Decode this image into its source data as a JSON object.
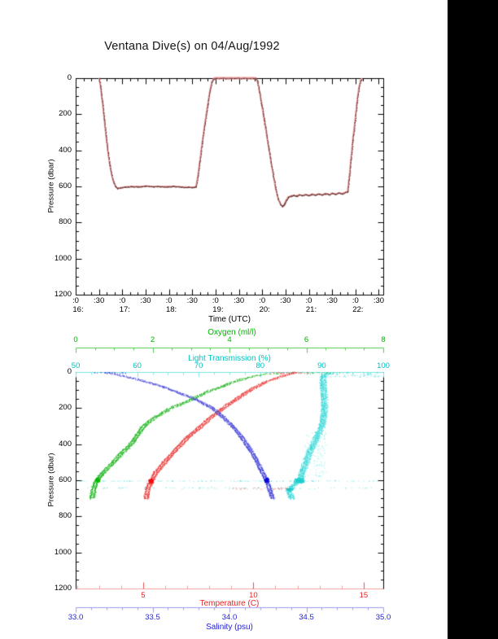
{
  "title": "Ventana Dive(s) on 04/Aug/1992",
  "colors": {
    "background": "#ffffff",
    "right_band": "#000000",
    "axis": "#000000",
    "dive_line": "#f2a6a6",
    "dive_dots": "#5e2a2a",
    "oxygen": "#12b212",
    "light_transmission": "#2fd6d6",
    "temperature": "#ea3030",
    "salinity": "#3c3cd6"
  },
  "chart_data": [
    {
      "id": "dive-depth-timeseries",
      "type": "line",
      "xlabel": "Time (UTC)",
      "ylabel": "Pressure (dbar)",
      "ylim": [
        1200,
        0
      ],
      "xlim_hours": [
        16.0,
        22.6
      ],
      "grid": false,
      "y_ticks": [
        0,
        200,
        400,
        600,
        800,
        1000,
        1200
      ],
      "x_ticks": [
        {
          "h": 16.0,
          "m": ":0",
          "hr": "16:"
        },
        {
          "h": 16.5,
          "m": ":30"
        },
        {
          "h": 17.0,
          "m": ":0",
          "hr": "17:"
        },
        {
          "h": 17.5,
          "m": ":30"
        },
        {
          "h": 18.0,
          "m": ":0",
          "hr": "18:"
        },
        {
          "h": 18.5,
          "m": ":30"
        },
        {
          "h": 19.0,
          "m": ":0",
          "hr": "19:"
        },
        {
          "h": 19.5,
          "m": ":30"
        },
        {
          "h": 20.0,
          "m": ":0",
          "hr": "20:"
        },
        {
          "h": 20.5,
          "m": ":30"
        },
        {
          "h": 21.0,
          "m": ":0",
          "hr": "21:"
        },
        {
          "h": 21.5,
          "m": ":30"
        },
        {
          "h": 22.0,
          "m": ":0",
          "hr": "22:"
        },
        {
          "h": 22.5,
          "m": ":30"
        }
      ],
      "series": [
        {
          "name": "dive pressure track",
          "line_color": "#f2a6a6",
          "dot_color": "#5e2a2a",
          "points_time_pressure": [
            [
              16.5,
              0
            ],
            [
              16.53,
              45
            ],
            [
              16.57,
              130
            ],
            [
              16.61,
              225
            ],
            [
              16.65,
              320
            ],
            [
              16.69,
              410
            ],
            [
              16.73,
              480
            ],
            [
              16.77,
              535
            ],
            [
              16.81,
              575
            ],
            [
              16.85,
              598
            ],
            [
              16.89,
              610
            ],
            [
              16.95,
              607
            ],
            [
              17.05,
              603
            ],
            [
              17.2,
              600
            ],
            [
              17.35,
              601
            ],
            [
              17.5,
              597
            ],
            [
              17.65,
              601
            ],
            [
              17.8,
              599
            ],
            [
              17.95,
              601
            ],
            [
              18.1,
              598
            ],
            [
              18.25,
              602
            ],
            [
              18.4,
              603
            ],
            [
              18.52,
              605
            ],
            [
              18.58,
              600
            ],
            [
              18.62,
              540
            ],
            [
              18.66,
              460
            ],
            [
              18.71,
              360
            ],
            [
              18.77,
              250
            ],
            [
              18.83,
              145
            ],
            [
              18.88,
              65
            ],
            [
              18.92,
              20
            ],
            [
              18.96,
              2
            ],
            [
              19.0,
              0
            ],
            [
              19.2,
              0
            ],
            [
              19.4,
              0
            ],
            [
              19.6,
              0
            ],
            [
              19.8,
              0
            ],
            [
              19.86,
              0
            ],
            [
              19.9,
              18
            ],
            [
              19.94,
              75
            ],
            [
              19.99,
              150
            ],
            [
              20.04,
              230
            ],
            [
              20.09,
              310
            ],
            [
              20.14,
              390
            ],
            [
              20.19,
              465
            ],
            [
              20.24,
              545
            ],
            [
              20.29,
              615
            ],
            [
              20.34,
              668
            ],
            [
              20.39,
              698
            ],
            [
              20.43,
              710
            ],
            [
              20.47,
              700
            ],
            [
              20.51,
              678
            ],
            [
              20.55,
              660
            ],
            [
              20.61,
              653
            ],
            [
              20.67,
              648
            ],
            [
              20.73,
              653
            ],
            [
              20.79,
              645
            ],
            [
              20.86,
              651
            ],
            [
              20.93,
              644
            ],
            [
              21.0,
              650
            ],
            [
              21.07,
              642
            ],
            [
              21.14,
              647
            ],
            [
              21.21,
              641
            ],
            [
              21.28,
              646
            ],
            [
              21.35,
              639
            ],
            [
              21.43,
              645
            ],
            [
              21.5,
              637
            ],
            [
              21.57,
              642
            ],
            [
              21.64,
              635
            ],
            [
              21.71,
              640
            ],
            [
              21.78,
              633
            ],
            [
              21.83,
              628
            ],
            [
              21.86,
              560
            ],
            [
              21.9,
              455
            ],
            [
              21.94,
              345
            ],
            [
              21.99,
              235
            ],
            [
              22.03,
              135
            ],
            [
              22.07,
              55
            ],
            [
              22.11,
              12
            ],
            [
              22.14,
              0
            ]
          ]
        }
      ]
    },
    {
      "id": "ctd-profiles",
      "type": "scatter",
      "ylabel": "Pressure (dbar)",
      "ylim": [
        1200,
        0
      ],
      "grid": false,
      "y_ticks": [
        0,
        200,
        400,
        600,
        800,
        1000,
        1200
      ],
      "series": [
        {
          "name": "Oxygen",
          "axis_label": "Oxygen (ml/l)",
          "axis_position": "floating-top",
          "color": "#12b212",
          "blob_color": "#0ab80a",
          "range": [
            0,
            8
          ],
          "ticks": [
            0,
            2,
            4,
            6,
            8
          ],
          "tick_labels": [
            "0",
            "2",
            "4",
            "6",
            "8"
          ],
          "minor_step": 0.5,
          "profile_pressure_value": [
            [
              0,
              5.9
            ],
            [
              5,
              5.3
            ],
            [
              12,
              4.85
            ],
            [
              25,
              4.55
            ],
            [
              40,
              4.3
            ],
            [
              60,
              4.0
            ],
            [
              80,
              3.8
            ],
            [
              100,
              3.5
            ],
            [
              130,
              3.2
            ],
            [
              160,
              2.9
            ],
            [
              200,
              2.45
            ],
            [
              250,
              2.05
            ],
            [
              300,
              1.75
            ],
            [
              350,
              1.6
            ],
            [
              400,
              1.42
            ],
            [
              450,
              1.18
            ],
            [
              500,
              0.97
            ],
            [
              550,
              0.73
            ],
            [
              590,
              0.58
            ],
            [
              620,
              0.5
            ],
            [
              660,
              0.45
            ],
            [
              700,
              0.42
            ]
          ]
        },
        {
          "name": "Light Transmission",
          "axis_label": "Light Transmission (%)",
          "axis_position": "top-edge",
          "color": "#2fd6d6",
          "blob_color": "#1fd0d0",
          "range": [
            50,
            100
          ],
          "ticks": [
            50,
            60,
            70,
            80,
            90,
            100
          ],
          "tick_labels": [
            "50",
            "60",
            "70",
            "80",
            "90",
            "100"
          ],
          "minor_step": 2.5,
          "profile_pressure_value": [
            [
              0,
              93
            ],
            [
              5,
              91.2
            ],
            [
              15,
              90.4
            ],
            [
              30,
              90.2
            ],
            [
              60,
              90.2
            ],
            [
              100,
              90.3
            ],
            [
              150,
              90.4
            ],
            [
              200,
              90.4
            ],
            [
              250,
              90.3
            ],
            [
              300,
              90.0
            ],
            [
              350,
              89.3
            ],
            [
              400,
              88.6
            ],
            [
              450,
              87.9
            ],
            [
              500,
              87.4
            ],
            [
              550,
              86.8
            ],
            [
              590,
              86.6
            ],
            [
              615,
              85.8
            ],
            [
              640,
              84.8
            ],
            [
              665,
              84.6
            ],
            [
              700,
              85.2
            ]
          ]
        },
        {
          "name": "Temperature",
          "axis_label": "Temperature (C)",
          "axis_position": "bottom-edge",
          "color": "#ea3030",
          "blob_color": "#f01212",
          "range": [
            1.94,
            15.89
          ],
          "ticks": [
            5,
            10,
            15
          ],
          "tick_labels": [
            "5",
            "10",
            "15"
          ],
          "minor_step": 1,
          "profile_pressure_value": [
            [
              0,
              11.9
            ],
            [
              10,
              11.6
            ],
            [
              25,
              11.2
            ],
            [
              50,
              10.6
            ],
            [
              75,
              10.2
            ],
            [
              100,
              9.8
            ],
            [
              150,
              9.2
            ],
            [
              200,
              8.6
            ],
            [
              250,
              8.05
            ],
            [
              300,
              7.6
            ],
            [
              350,
              7.1
            ],
            [
              400,
              6.7
            ],
            [
              450,
              6.3
            ],
            [
              500,
              5.95
            ],
            [
              550,
              5.6
            ],
            [
              600,
              5.35
            ],
            [
              650,
              5.2
            ],
            [
              700,
              5.12
            ]
          ]
        },
        {
          "name": "Salinity",
          "axis_label": "Salinity (psu)",
          "axis_position": "floating-bottom",
          "color": "#3c3cd6",
          "blob_color": "#0d0dd8",
          "range": [
            33.0,
            35.0
          ],
          "ticks": [
            33.0,
            33.5,
            34.0,
            34.5,
            35.0
          ],
          "tick_labels": [
            "33.0",
            "33.5",
            "34.0",
            "34.5",
            "35.0"
          ],
          "minor_step": 0.1,
          "profile_pressure_value": [
            [
              0,
              33.2
            ],
            [
              10,
              33.26
            ],
            [
              25,
              33.33
            ],
            [
              50,
              33.45
            ],
            [
              75,
              33.55
            ],
            [
              100,
              33.63
            ],
            [
              150,
              33.78
            ],
            [
              200,
              33.89
            ],
            [
              250,
              33.96
            ],
            [
              300,
              34.02
            ],
            [
              350,
              34.07
            ],
            [
              400,
              34.11
            ],
            [
              450,
              34.15
            ],
            [
              500,
              34.18
            ],
            [
              550,
              34.21
            ],
            [
              600,
              34.24
            ],
            [
              650,
              34.26
            ],
            [
              700,
              34.28
            ]
          ]
        }
      ]
    }
  ]
}
